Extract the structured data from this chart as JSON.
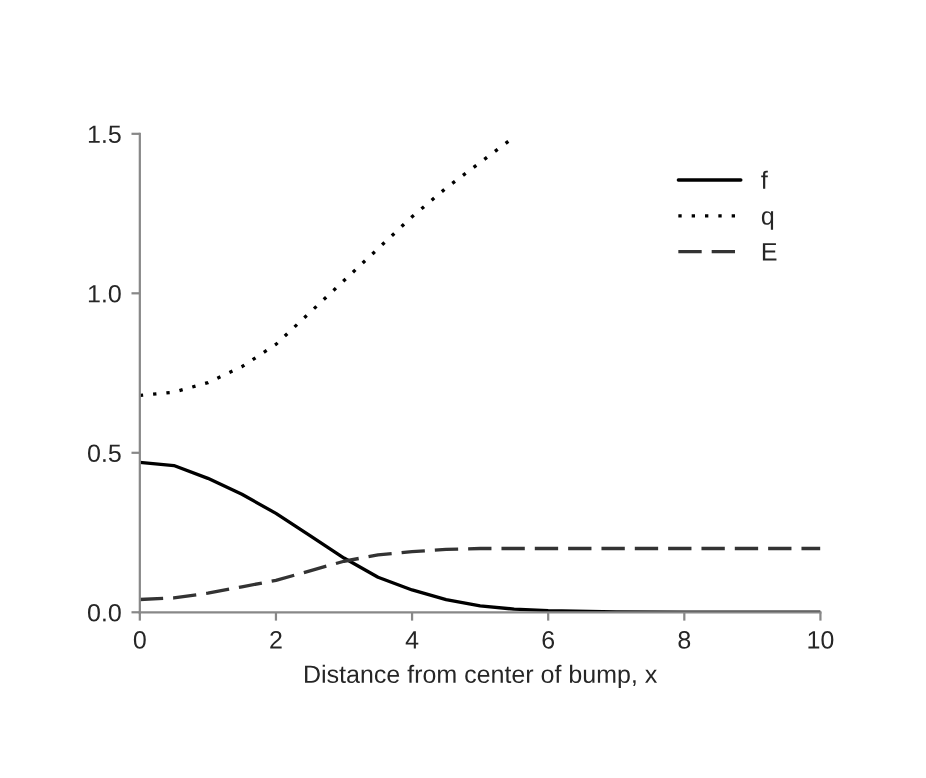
{
  "chart_data": {
    "type": "line",
    "xlabel": "Distance from center of bump, x",
    "x": [
      0,
      0.5,
      1,
      1.5,
      2,
      2.5,
      3,
      3.5,
      4,
      4.5,
      5,
      5.5,
      6,
      7,
      8,
      9,
      10
    ],
    "series": [
      {
        "name": "f",
        "color": "#000000",
        "line_style": "solid",
        "values": [
          0.47,
          0.46,
          0.42,
          0.37,
          0.31,
          0.24,
          0.17,
          0.11,
          0.07,
          0.04,
          0.02,
          0.01,
          0.005,
          0.001,
          0,
          0,
          0
        ]
      },
      {
        "name": "q",
        "color": "#000000",
        "line_style": "dotted",
        "x": [
          0,
          0.5,
          1,
          1.5,
          2,
          2.5,
          3,
          3.5,
          4,
          4.5,
          5,
          5.5
        ],
        "values": [
          0.68,
          0.69,
          0.72,
          0.77,
          0.84,
          0.94,
          1.04,
          1.14,
          1.24,
          1.33,
          1.41,
          1.49
        ]
      },
      {
        "name": "E",
        "color": "#333333",
        "line_style": "dashed",
        "values": [
          0.04,
          0.045,
          0.06,
          0.08,
          0.1,
          0.13,
          0.16,
          0.18,
          0.19,
          0.197,
          0.2,
          0.2,
          0.2,
          0.2,
          0.2,
          0.2,
          0.2
        ]
      }
    ],
    "xlim": [
      0,
      10
    ],
    "ylim": [
      0,
      1.5
    ],
    "xticks": [
      0,
      2,
      4,
      6,
      8,
      10
    ],
    "yticks": [
      {
        "value": 0,
        "label": "0.0"
      },
      {
        "value": 0.5,
        "label": "0.5"
      },
      {
        "value": 1,
        "label": "1.0"
      },
      {
        "value": 1.5,
        "label": "1.5"
      }
    ],
    "legend": "top right",
    "grid": false
  }
}
